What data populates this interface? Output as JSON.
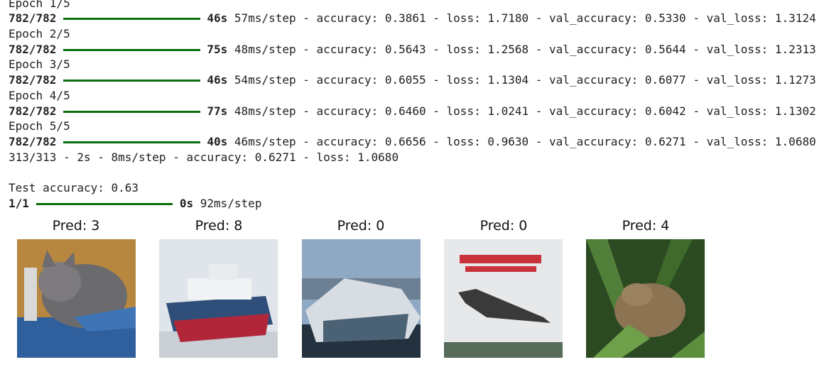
{
  "epochs": [
    {
      "header": "Epoch 1/5",
      "steps": "782/782",
      "time": "46s",
      "metrics": "57ms/step - accuracy: 0.3861 - loss: 1.7180 - val_accuracy: 0.5330 - val_loss: 1.3124"
    },
    {
      "header": "Epoch 2/5",
      "steps": "782/782",
      "time": "75s",
      "metrics": "48ms/step - accuracy: 0.5643 - loss: 1.2568 - val_accuracy: 0.5644 - val_loss: 1.2313"
    },
    {
      "header": "Epoch 3/5",
      "steps": "782/782",
      "time": "46s",
      "metrics": "54ms/step - accuracy: 0.6055 - loss: 1.1304 - val_accuracy: 0.6077 - val_loss: 1.1273"
    },
    {
      "header": "Epoch 4/5",
      "steps": "782/782",
      "time": "77s",
      "metrics": "48ms/step - accuracy: 0.6460 - loss: 1.0241 - val_accuracy: 0.6042 - val_loss: 1.1302"
    },
    {
      "header": "Epoch 5/5",
      "steps": "782/782",
      "time": "40s",
      "metrics": "46ms/step - accuracy: 0.6656 - loss: 0.9630 - val_accuracy: 0.6271 - val_loss: 1.0680"
    }
  ],
  "evaluation": "313/313 - 2s - 8ms/step - accuracy: 0.6271 - loss: 1.0680",
  "test_accuracy": "Test accuracy: 0.63",
  "predict": {
    "steps": "1/1",
    "time": "0s",
    "metrics": "92ms/step"
  },
  "predictions": [
    "Pred: 3",
    "Pred: 8",
    "Pred: 0",
    "Pred: 0",
    "Pred: 4"
  ]
}
